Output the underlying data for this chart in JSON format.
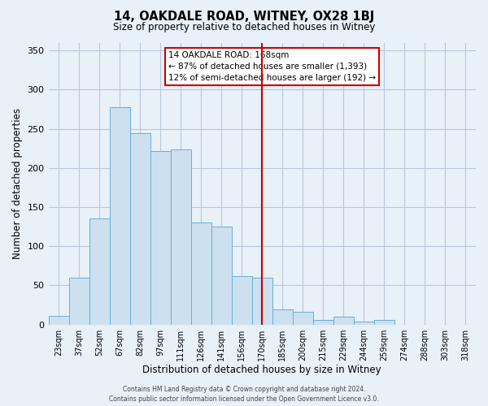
{
  "title": "14, OAKDALE ROAD, WITNEY, OX28 1BJ",
  "subtitle": "Size of property relative to detached houses in Witney",
  "xlabel": "Distribution of detached houses by size in Witney",
  "ylabel": "Number of detached properties",
  "bar_labels": [
    "23sqm",
    "37sqm",
    "52sqm",
    "67sqm",
    "82sqm",
    "97sqm",
    "111sqm",
    "126sqm",
    "141sqm",
    "156sqm",
    "170sqm",
    "185sqm",
    "200sqm",
    "215sqm",
    "229sqm",
    "244sqm",
    "259sqm",
    "274sqm",
    "288sqm",
    "303sqm",
    "318sqm"
  ],
  "bar_values": [
    11,
    60,
    136,
    278,
    244,
    222,
    224,
    130,
    125,
    62,
    60,
    19,
    16,
    6,
    10,
    4,
    6,
    0,
    0,
    0,
    0
  ],
  "bar_color": "#cce0f0",
  "bar_edgecolor": "#6aaed6",
  "vline_x_index": 10,
  "vline_color": "#cc0000",
  "ylim": [
    0,
    360
  ],
  "yticks": [
    0,
    50,
    100,
    150,
    200,
    250,
    300,
    350
  ],
  "annotation_title": "14 OAKDALE ROAD: 168sqm",
  "annotation_line1": "← 87% of detached houses are smaller (1,393)",
  "annotation_line2": "12% of semi-detached houses are larger (192) →",
  "annotation_box_edgecolor": "#cc0000",
  "footer_line1": "Contains HM Land Registry data © Crown copyright and database right 2024.",
  "footer_line2": "Contains public sector information licensed under the Open Government Licence v3.0.",
  "plot_background": "#e8f0f8",
  "grid_color": "#b8c8d8"
}
